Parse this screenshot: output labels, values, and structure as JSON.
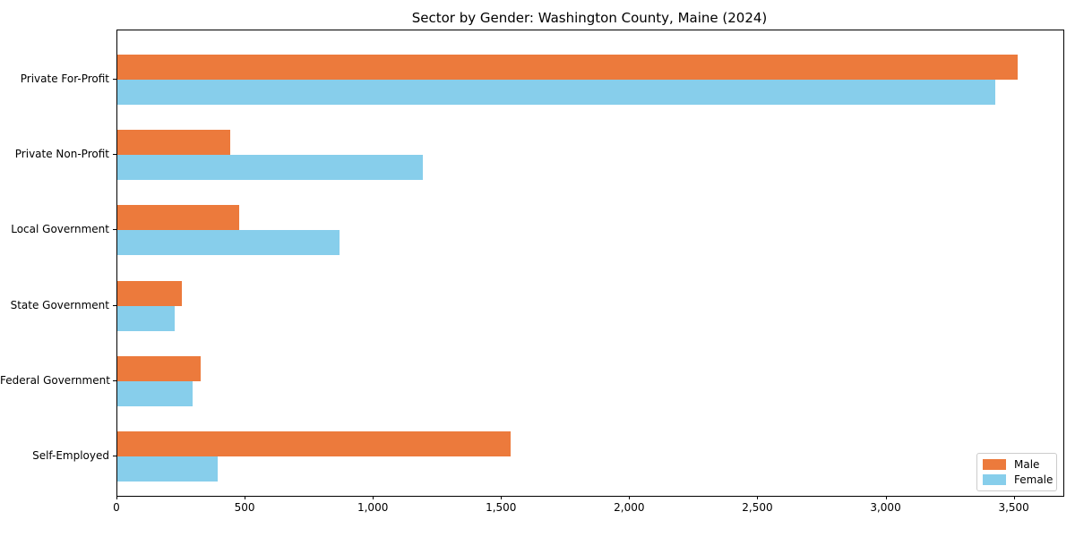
{
  "chart_data": {
    "type": "bar",
    "orientation": "horizontal",
    "title": "Sector by Gender: Washington County, Maine (2024)",
    "categories": [
      "Private For-Profit",
      "Private Non-Profit",
      "Local Government",
      "State Government",
      "Federal Government",
      "Self-Employed"
    ],
    "series": [
      {
        "name": "Male",
        "color": "#ec7a3c",
        "values": [
          3510,
          440,
          475,
          250,
          325,
          1535
        ]
      },
      {
        "name": "Female",
        "color": "#87ceeb",
        "values": [
          3425,
          1190,
          865,
          225,
          295,
          390
        ]
      }
    ],
    "xlim": [
      0,
      3690
    ],
    "xticks": [
      0,
      500,
      1000,
      1500,
      2000,
      2500,
      3000,
      3500
    ],
    "xtick_labels": [
      "0",
      "500",
      "1,000",
      "1,500",
      "2,000",
      "2,500",
      "3,000",
      "3,500"
    ],
    "xlabel": "",
    "ylabel": "",
    "grid": false,
    "legend_position": "lower right",
    "background_color": "#ffffff",
    "spine_color": "#000000"
  }
}
